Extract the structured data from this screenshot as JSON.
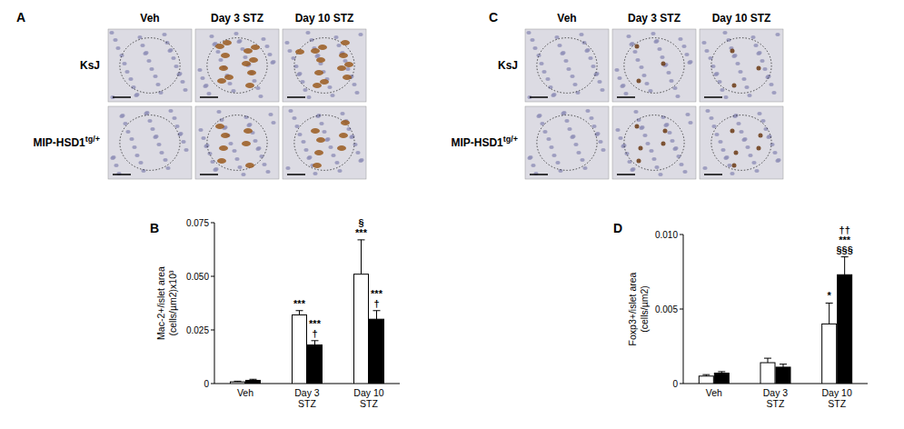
{
  "image_panels": [
    {
      "panel": "A",
      "columns": [
        "Veh",
        "Day 3 STZ",
        "Day 10 STZ"
      ],
      "rows": [
        {
          "text": "KsJ"
        },
        {
          "text": "MIP-HSD1",
          "superscript": "tg/+"
        }
      ]
    },
    {
      "panel": "C",
      "columns": [
        "Veh",
        "Day 3 STZ",
        "Day 10 STZ"
      ],
      "rows": [
        {
          "text": "KsJ"
        },
        {
          "text": "MIP-HSD1",
          "superscript": "tg/+"
        }
      ]
    }
  ],
  "chart_data": [
    {
      "type": "bar",
      "panel": "B",
      "y_label": "Mac-2+/islet area (cells/µm2)x10³",
      "categories": [
        "Veh",
        "Day 3 STZ",
        "Day 10 STZ"
      ],
      "ylim": [
        0,
        0.075
      ],
      "yticks": [
        0,
        0.025,
        {
          "value": 0.05,
          "label": "0.050"
        },
        0.075
      ],
      "series": [
        {
          "color": "#ffffff",
          "values": [
            0.0008,
            0.032,
            0.051
          ],
          "errors": [
            0.0003,
            0.002,
            0.016
          ],
          "annotations": [
            null,
            [
              "***"
            ],
            [
              "***",
              "§"
            ]
          ]
        },
        {
          "color": "#000000",
          "values": [
            0.0015,
            0.018,
            0.03
          ],
          "errors": [
            0.0005,
            0.002,
            0.004
          ],
          "annotations": [
            null,
            [
              "†",
              "***"
            ],
            [
              "†",
              "***"
            ]
          ]
        }
      ]
    },
    {
      "type": "bar",
      "panel": "D",
      "y_label": "Foxp3+/islet area (cells/µm2)",
      "categories": [
        "Veh",
        "Day 3 STZ",
        "Day 10 STZ"
      ],
      "ylim": [
        0,
        0.01
      ],
      "yticks": [
        0,
        0.005,
        {
          "value": 0.01,
          "label": "0.010"
        }
      ],
      "series": [
        {
          "color": "#ffffff",
          "values": [
            0.0005,
            0.0014,
            0.004
          ],
          "errors": [
            0.0001,
            0.0003,
            0.0014
          ],
          "annotations": [
            null,
            null,
            [
              "*"
            ]
          ]
        },
        {
          "color": "#000000",
          "values": [
            0.0007,
            0.0011,
            0.0073
          ],
          "errors": [
            0.0001,
            0.0002,
            0.0012
          ],
          "annotations": [
            null,
            null,
            [
              "§§§",
              "***",
              "††"
            ]
          ]
        }
      ]
    }
  ]
}
